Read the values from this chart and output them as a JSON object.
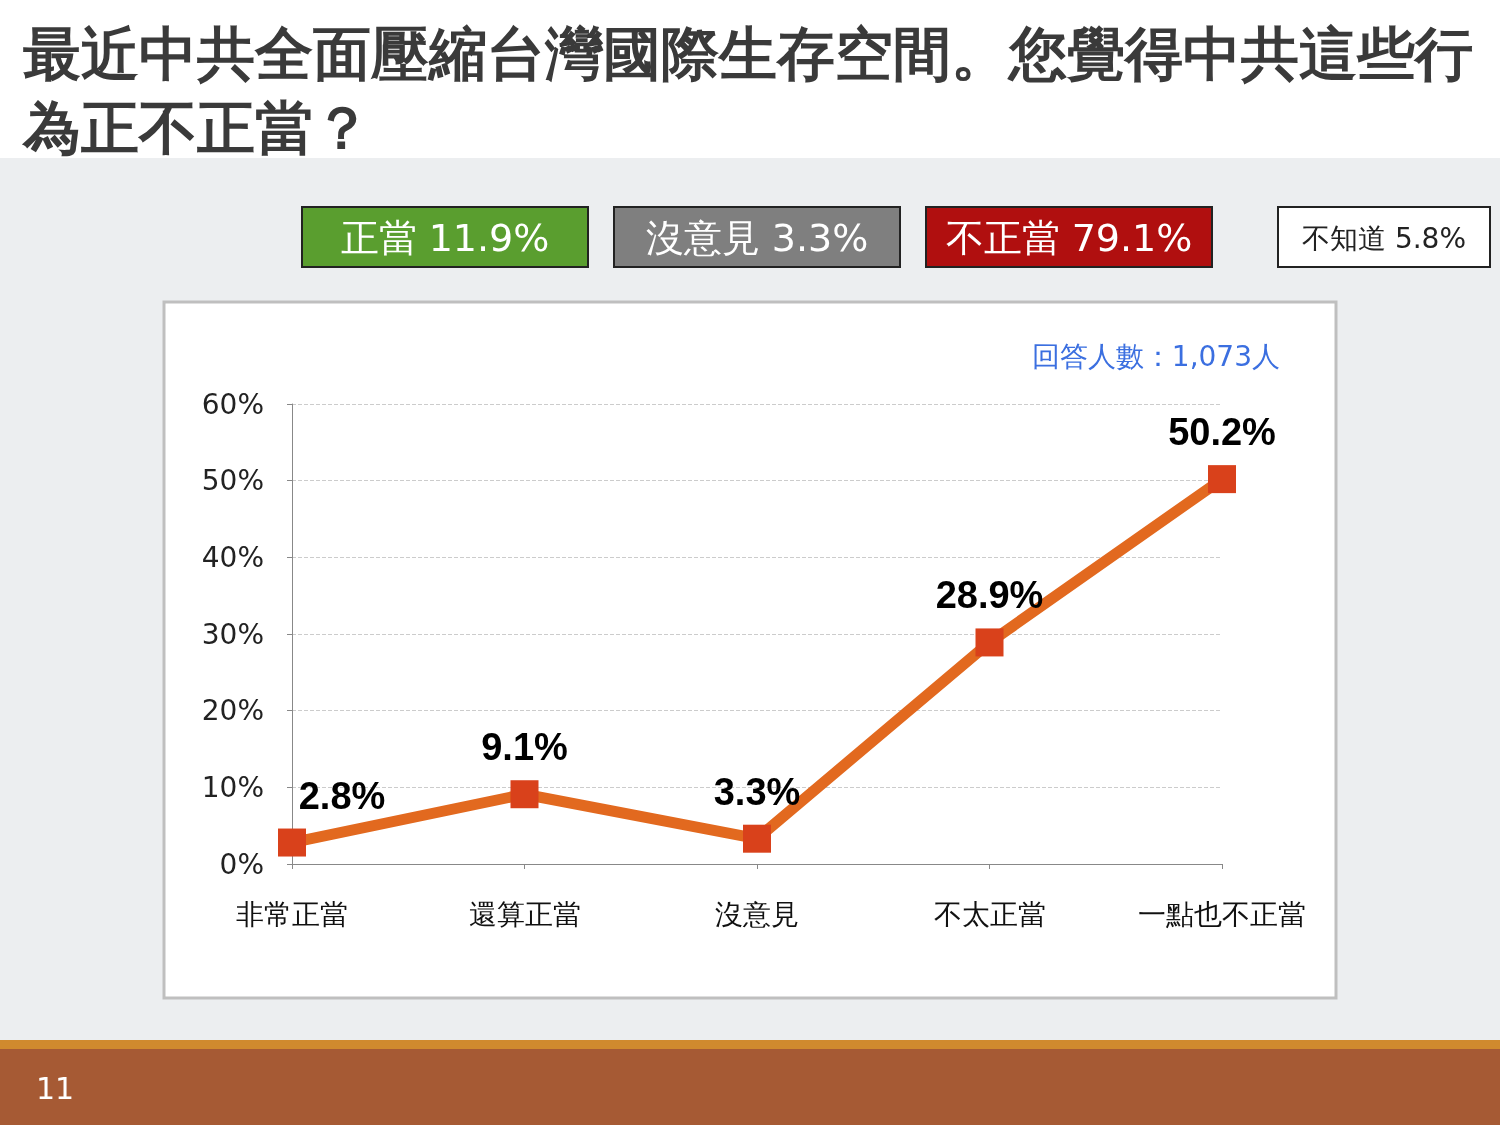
{
  "chart_data": {
    "type": "line",
    "title": "最近中共全面壓縮台灣國際生存空間。您覺得中共這些行為正不正當？",
    "annotations": [
      "正當 11.9%",
      "沒意見 3.3%",
      "不正當 79.1%",
      "不知道 5.8%",
      "回答人數：1,073人",
      "11"
    ],
    "categories": [
      "非常正當",
      "還算正當",
      "沒意見",
      "不太正當",
      "一點也不正當"
    ],
    "series": [
      {
        "color": "#e2691f",
        "values": [
          2.8,
          9.1,
          3.3,
          28.9,
          50.2
        ],
        "value_labels": [
          "2.8%",
          "9.1%",
          "3.3%",
          "28.9%",
          "50.2%"
        ]
      }
    ],
    "ylim": [
      0,
      60
    ],
    "yticks": [
      {
        "value": 0,
        "label": "0%"
      },
      {
        "value": 10,
        "label": "10%"
      },
      {
        "value": 20,
        "label": "20%"
      },
      {
        "value": 30,
        "label": "30%"
      },
      {
        "value": 40,
        "label": "40%"
      },
      {
        "value": 50,
        "label": "50%"
      },
      {
        "value": 60,
        "label": "60%"
      }
    ],
    "grid": "y",
    "marker": "square",
    "line_style": "solid"
  }
}
